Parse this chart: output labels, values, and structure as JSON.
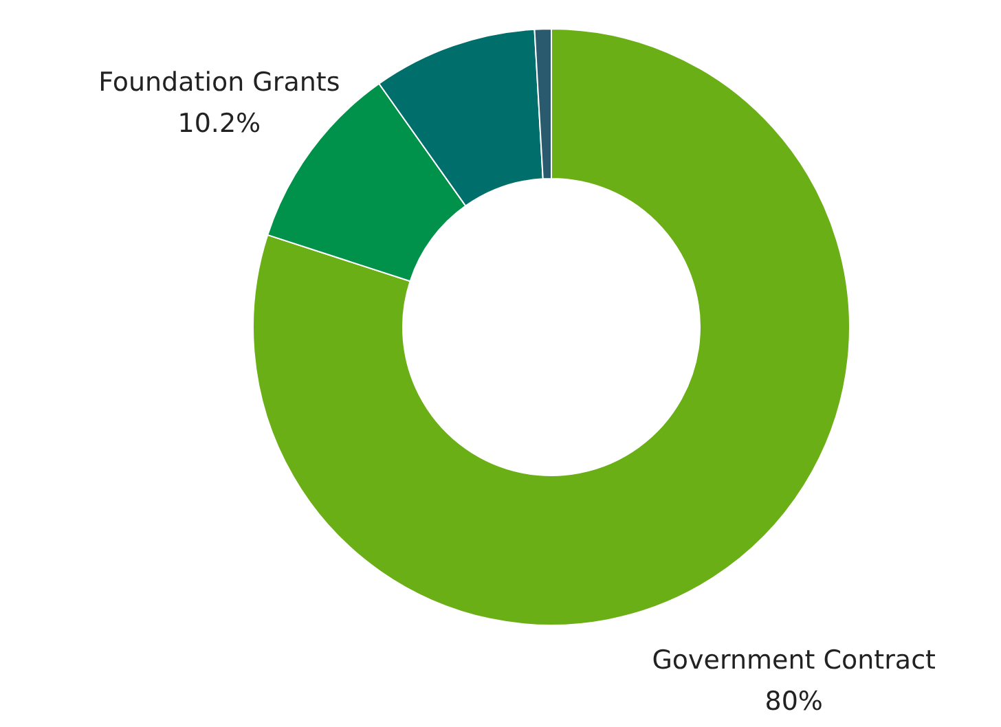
{
  "chart_data": {
    "type": "donut",
    "categories": [
      "Government Contract",
      "Foundation Grants",
      null,
      null
    ],
    "values": [
      80,
      10.2,
      8.9,
      0.9
    ],
    "colors": [
      "#6aaf15",
      "#00924b",
      "#006e6a",
      "#2a5a6e"
    ],
    "value_labels": [
      "80%",
      "10.2%",
      null,
      null
    ]
  }
}
